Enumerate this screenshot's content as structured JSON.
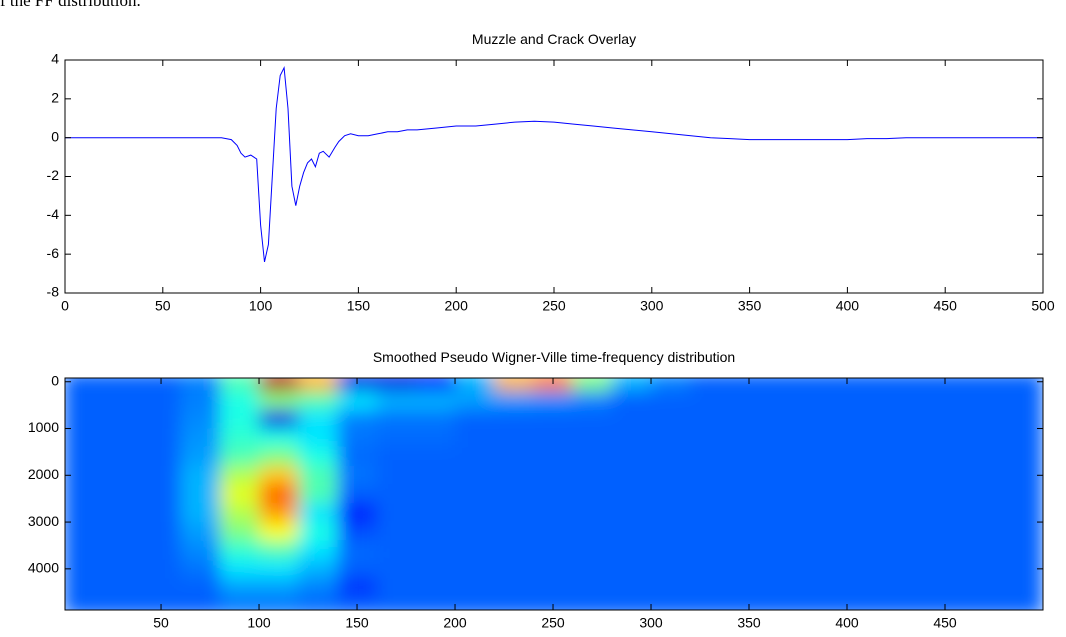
{
  "text_fragment": "f the FF distribution.",
  "chart_data": [
    {
      "type": "line",
      "title": "Muzzle and Crack Overlay",
      "color": "#0000ff",
      "x": [
        0,
        20,
        40,
        60,
        80,
        85,
        88,
        90,
        92,
        95,
        98,
        100,
        102,
        104,
        106,
        108,
        110,
        112,
        114,
        116,
        118,
        120,
        122,
        124,
        126,
        128,
        130,
        132,
        135,
        138,
        140,
        143,
        146,
        150,
        155,
        160,
        165,
        170,
        175,
        180,
        190,
        200,
        210,
        220,
        230,
        240,
        250,
        260,
        270,
        280,
        290,
        300,
        310,
        320,
        330,
        340,
        350,
        360,
        370,
        380,
        390,
        400,
        410,
        420,
        430,
        440,
        450,
        460,
        470,
        480,
        490,
        500
      ],
      "values": [
        0,
        0,
        0,
        0,
        0,
        -0.1,
        -0.4,
        -0.8,
        -1.0,
        -0.9,
        -1.1,
        -4.5,
        -6.4,
        -5.5,
        -2,
        1.5,
        3.2,
        3.6,
        1.5,
        -2.5,
        -3.5,
        -2.5,
        -1.8,
        -1.3,
        -1.1,
        -1.5,
        -0.8,
        -0.7,
        -1.0,
        -0.5,
        -0.2,
        0.1,
        0.2,
        0.1,
        0.1,
        0.2,
        0.3,
        0.3,
        0.4,
        0.4,
        0.5,
        0.6,
        0.6,
        0.7,
        0.8,
        0.85,
        0.8,
        0.7,
        0.6,
        0.5,
        0.4,
        0.3,
        0.2,
        0.1,
        0,
        -0.05,
        -0.1,
        -0.1,
        -0.1,
        -0.1,
        -0.1,
        -0.1,
        -0.05,
        -0.05,
        0,
        0,
        0,
        0,
        0,
        0,
        0,
        0
      ],
      "xlim": [
        0,
        500
      ],
      "ylim": [
        -8,
        4
      ],
      "xticks": [
        0,
        50,
        100,
        150,
        200,
        250,
        300,
        350,
        400,
        450,
        500
      ],
      "yticks": [
        -8,
        -6,
        -4,
        -2,
        0,
        2,
        4
      ]
    },
    {
      "type": "heatmap",
      "title": "Smoothed Pseudo Wigner-Ville time-frequency distribution",
      "colormap": "jet",
      "clim": [
        0,
        1
      ],
      "y_reversed": true,
      "x": [
        10,
        30,
        50,
        70,
        90,
        110,
        130,
        150,
        170,
        190,
        210,
        230,
        250,
        270,
        290,
        310,
        330,
        350,
        370,
        390,
        410,
        430,
        450,
        470,
        490
      ],
      "y": [
        0,
        400,
        800,
        1200,
        1600,
        2000,
        2400,
        2800,
        3200,
        3600,
        4000,
        4400,
        4800
      ],
      "z": [
        [
          0.22,
          0.22,
          0.22,
          0.25,
          0.45,
          0.95,
          0.7,
          0.1,
          0.1,
          0.15,
          0.3,
          0.7,
          0.75,
          0.5,
          0.3,
          0.25,
          0.22,
          0.22,
          0.22,
          0.22,
          0.22,
          0.22,
          0.22,
          0.22,
          0.22
        ],
        [
          0.22,
          0.22,
          0.22,
          0.25,
          0.4,
          0.5,
          0.45,
          0.35,
          0.3,
          0.3,
          0.28,
          0.27,
          0.26,
          0.25,
          0.22,
          0.22,
          0.22,
          0.22,
          0.22,
          0.22,
          0.22,
          0.22,
          0.22,
          0.22,
          0.22
        ],
        [
          0.22,
          0.22,
          0.22,
          0.26,
          0.4,
          0.1,
          0.35,
          0.25,
          0.24,
          0.24,
          0.22,
          0.22,
          0.22,
          0.22,
          0.22,
          0.22,
          0.22,
          0.22,
          0.22,
          0.22,
          0.22,
          0.22,
          0.22,
          0.22,
          0.22
        ],
        [
          0.22,
          0.22,
          0.22,
          0.27,
          0.42,
          0.4,
          0.35,
          0.24,
          0.23,
          0.23,
          0.22,
          0.22,
          0.22,
          0.22,
          0.22,
          0.22,
          0.22,
          0.22,
          0.22,
          0.22,
          0.22,
          0.22,
          0.22,
          0.22,
          0.22
        ],
        [
          0.22,
          0.22,
          0.22,
          0.28,
          0.45,
          0.5,
          0.4,
          0.23,
          0.22,
          0.22,
          0.22,
          0.22,
          0.22,
          0.22,
          0.22,
          0.22,
          0.22,
          0.22,
          0.22,
          0.22,
          0.22,
          0.22,
          0.22,
          0.22,
          0.22
        ],
        [
          0.22,
          0.22,
          0.22,
          0.3,
          0.55,
          0.68,
          0.45,
          0.24,
          0.22,
          0.22,
          0.22,
          0.22,
          0.22,
          0.22,
          0.22,
          0.22,
          0.22,
          0.22,
          0.22,
          0.22,
          0.22,
          0.22,
          0.22,
          0.22,
          0.22
        ],
        [
          0.22,
          0.22,
          0.22,
          0.3,
          0.6,
          0.78,
          0.45,
          0.22,
          0.22,
          0.22,
          0.22,
          0.22,
          0.22,
          0.22,
          0.22,
          0.22,
          0.22,
          0.22,
          0.22,
          0.22,
          0.22,
          0.22,
          0.22,
          0.22,
          0.22
        ],
        [
          0.22,
          0.22,
          0.22,
          0.3,
          0.55,
          0.72,
          0.35,
          0.15,
          0.22,
          0.22,
          0.22,
          0.22,
          0.22,
          0.22,
          0.22,
          0.22,
          0.22,
          0.22,
          0.22,
          0.22,
          0.22,
          0.22,
          0.22,
          0.22,
          0.22
        ],
        [
          0.22,
          0.22,
          0.22,
          0.28,
          0.5,
          0.62,
          0.4,
          0.2,
          0.22,
          0.22,
          0.22,
          0.22,
          0.22,
          0.22,
          0.22,
          0.22,
          0.22,
          0.22,
          0.22,
          0.22,
          0.22,
          0.22,
          0.22,
          0.22,
          0.22
        ],
        [
          0.22,
          0.22,
          0.22,
          0.26,
          0.42,
          0.45,
          0.35,
          0.23,
          0.22,
          0.22,
          0.22,
          0.22,
          0.22,
          0.22,
          0.22,
          0.22,
          0.22,
          0.22,
          0.22,
          0.22,
          0.22,
          0.22,
          0.22,
          0.22,
          0.22
        ],
        [
          0.22,
          0.22,
          0.22,
          0.24,
          0.35,
          0.35,
          0.3,
          0.22,
          0.22,
          0.22,
          0.22,
          0.22,
          0.22,
          0.22,
          0.22,
          0.22,
          0.22,
          0.22,
          0.22,
          0.22,
          0.22,
          0.22,
          0.22,
          0.22,
          0.22
        ],
        [
          0.22,
          0.22,
          0.22,
          0.22,
          0.28,
          0.28,
          0.25,
          0.17,
          0.22,
          0.22,
          0.22,
          0.22,
          0.22,
          0.22,
          0.22,
          0.22,
          0.22,
          0.22,
          0.22,
          0.22,
          0.22,
          0.22,
          0.22,
          0.22,
          0.22
        ],
        [
          0.22,
          0.22,
          0.22,
          0.22,
          0.24,
          0.24,
          0.23,
          0.22,
          0.22,
          0.22,
          0.22,
          0.22,
          0.22,
          0.22,
          0.22,
          0.22,
          0.22,
          0.22,
          0.22,
          0.22,
          0.22,
          0.22,
          0.22,
          0.22,
          0.22
        ]
      ],
      "xlim": [
        1,
        500
      ],
      "ylim": [
        -80,
        4880
      ],
      "xticks": [
        50,
        100,
        150,
        200,
        250,
        300,
        350,
        400,
        450
      ],
      "yticks": [
        0,
        1000,
        2000,
        3000,
        4000
      ]
    }
  ]
}
